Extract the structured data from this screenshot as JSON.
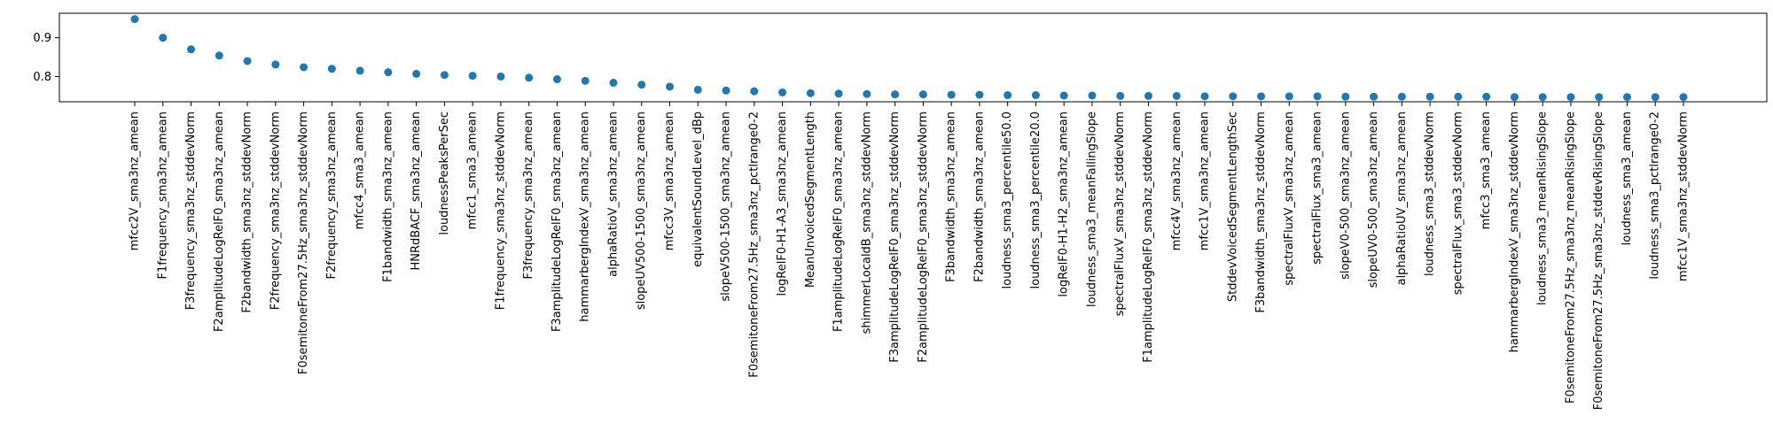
{
  "chart_data": {
    "type": "scatter",
    "title": "",
    "xlabel": "",
    "ylabel": "",
    "ylim": [
      0.735,
      0.963
    ],
    "yticks": [
      0.8,
      0.9
    ],
    "ytick_labels": [
      "0.8",
      "0.9"
    ],
    "grid": false,
    "marker_color": "#1f77b4",
    "categories": [
      "mfcc2V_sma3nz_amean",
      "F1frequency_sma3nz_amean",
      "F3frequency_sma3nz_stddevNorm",
      "F2amplitudeLogRelF0_sma3nz_amean",
      "F2bandwidth_sma3nz_stddevNorm",
      "F2frequency_sma3nz_stddevNorm",
      "F0semitoneFrom27.5Hz_sma3nz_stddevNorm",
      "F2frequency_sma3nz_amean",
      "mfcc4_sma3_amean",
      "F1bandwidth_sma3nz_amean",
      "HNRdBACF_sma3nz_amean",
      "loudnessPeaksPerSec",
      "mfcc1_sma3_amean",
      "F1frequency_sma3nz_stddevNorm",
      "F3frequency_sma3nz_amean",
      "F3amplitudeLogRelF0_sma3nz_amean",
      "hammarbergIndexV_sma3nz_amean",
      "alphaRatioV_sma3nz_amean",
      "slopeUV500-1500_sma3nz_amean",
      "mfcc3V_sma3nz_amean",
      "equivalentSoundLevel_dBp",
      "slopeV500-1500_sma3nz_amean",
      "F0semitoneFrom27.5Hz_sma3nz_pctlrange0-2",
      "logRelF0-H1-A3_sma3nz_amean",
      "MeanUnvoicedSegmentLength",
      "F1amplitudeLogRelF0_sma3nz_amean",
      "shimmerLocaldB_sma3nz_stddevNorm",
      "F3amplitudeLogRelF0_sma3nz_stddevNorm",
      "F2amplitudeLogRelF0_sma3nz_stddevNorm",
      "F3bandwidth_sma3nz_amean",
      "F2bandwidth_sma3nz_amean",
      "loudness_sma3_percentile50.0",
      "loudness_sma3_percentile20.0",
      "logRelF0-H1-H2_sma3nz_amean",
      "loudness_sma3_meanFallingSlope",
      "spectralFluxV_sma3nz_stddevNorm",
      "F1amplitudeLogRelF0_sma3nz_stddevNorm",
      "mfcc4V_sma3nz_amean",
      "mfcc1V_sma3nz_amean",
      "StddevVoicedSegmentLengthSec",
      "F3bandwidth_sma3nz_stddevNorm",
      "spectralFluxV_sma3nz_amean",
      "spectralFlux_sma3_amean",
      "slopeV0-500_sma3nz_amean",
      "slopeUV0-500_sma3nz_amean",
      "alphaRatioUV_sma3nz_amean",
      "loudness_sma3_stddevNorm",
      "spectralFlux_sma3_stddevNorm",
      "mfcc3_sma3_amean",
      "hammarbergIndexV_sma3nz_stddevNorm",
      "loudness_sma3_meanRisingSlope",
      "F0semitoneFrom27.5Hz_sma3nz_meanRisingSlope",
      "F0semitoneFrom27.5Hz_sma3nz_stddevRisingSlope",
      "loudness_sma3_amean",
      "loudness_sma3_pctlrange0-2",
      "mfcc1V_sma3nz_stddevNorm"
    ],
    "values": [
      0.948,
      0.9,
      0.87,
      0.854,
      0.84,
      0.831,
      0.824,
      0.82,
      0.815,
      0.811,
      0.807,
      0.804,
      0.802,
      0.8,
      0.797,
      0.793,
      0.789,
      0.784,
      0.779,
      0.774,
      0.766,
      0.764,
      0.762,
      0.759,
      0.757,
      0.756,
      0.755,
      0.754,
      0.754,
      0.753,
      0.753,
      0.752,
      0.752,
      0.751,
      0.751,
      0.75,
      0.75,
      0.75,
      0.749,
      0.749,
      0.749,
      0.749,
      0.749,
      0.748,
      0.748,
      0.748,
      0.748,
      0.748,
      0.748,
      0.747,
      0.747,
      0.747,
      0.747,
      0.747,
      0.747,
      0.747
    ]
  }
}
